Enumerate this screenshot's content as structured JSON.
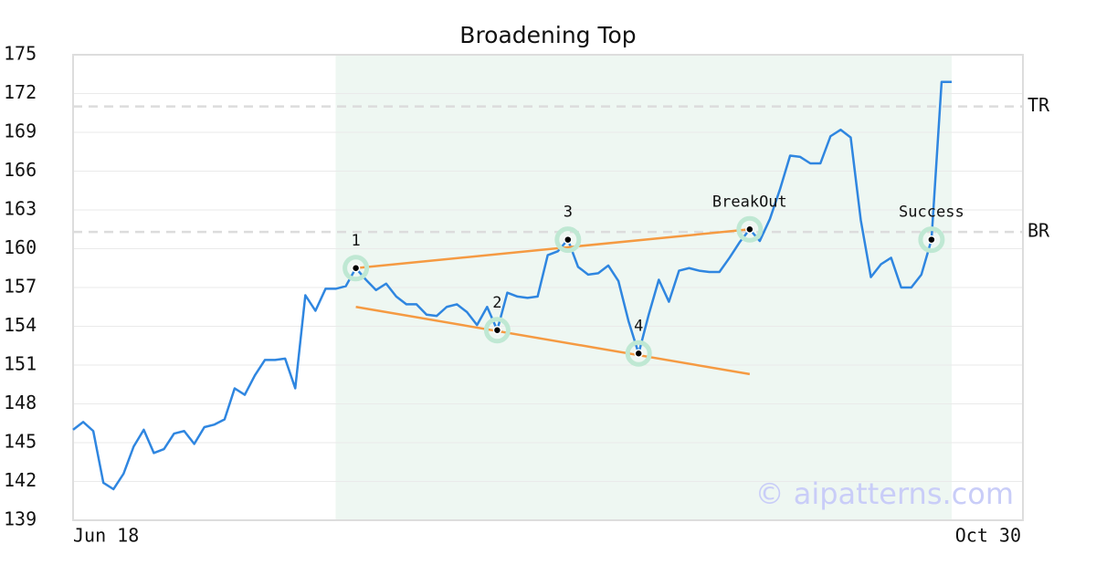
{
  "chart_data": {
    "type": "line",
    "title": "Broadening Top",
    "color": "#2f86e0",
    "x_labels": [
      "Jun 18",
      "Oct 30"
    ],
    "values": [
      146.0,
      146.6,
      145.9,
      141.9,
      141.4,
      142.6,
      144.7,
      146.0,
      144.2,
      144.5,
      145.7,
      145.9,
      144.9,
      146.2,
      146.4,
      146.8,
      149.2,
      148.7,
      150.2,
      151.4,
      151.4,
      151.5,
      149.2,
      156.4,
      155.2,
      156.9,
      156.9,
      157.1,
      158.5,
      157.6,
      156.8,
      157.3,
      156.3,
      155.7,
      155.7,
      154.9,
      154.8,
      155.5,
      155.7,
      155.1,
      154.1,
      155.5,
      153.7,
      156.6,
      156.3,
      156.2,
      156.3,
      159.5,
      159.8,
      160.7,
      158.6,
      158.0,
      158.1,
      158.7,
      157.5,
      154.4,
      151.9,
      154.9,
      157.6,
      155.9,
      158.3,
      158.5,
      158.3,
      158.2,
      158.2,
      159.3,
      160.5,
      161.5,
      160.6,
      162.3,
      164.6,
      167.2,
      167.1,
      166.6,
      166.6,
      168.7,
      169.2,
      168.6,
      162.2,
      157.8,
      158.8,
      159.3,
      157.0,
      157.0,
      158.0,
      160.7,
      172.9,
      172.9
    ],
    "ylim": [
      139,
      175
    ],
    "yticks": [
      139,
      142,
      145,
      148,
      151,
      154,
      157,
      160,
      163,
      166,
      169,
      172,
      175
    ],
    "grid": true,
    "levels": [
      {
        "label": "TR",
        "value": 171.0
      },
      {
        "label": "BR",
        "value": 161.3
      }
    ],
    "annotations": [
      {
        "label": "1",
        "index": 28
      },
      {
        "label": "2",
        "index": 42
      },
      {
        "label": "3",
        "index": 49
      },
      {
        "label": "4",
        "index": 56
      },
      {
        "label": "BreakOut",
        "index": 67
      },
      {
        "label": "Success",
        "index": 85
      }
    ],
    "trendline_color": "#f59a42",
    "trendlines": [
      {
        "x": [
          28,
          67
        ],
        "y": [
          158.5,
          161.5
        ]
      },
      {
        "x": [
          28,
          67
        ],
        "y": [
          155.5,
          150.3
        ]
      }
    ],
    "watermark": "© aipatterns.com"
  }
}
